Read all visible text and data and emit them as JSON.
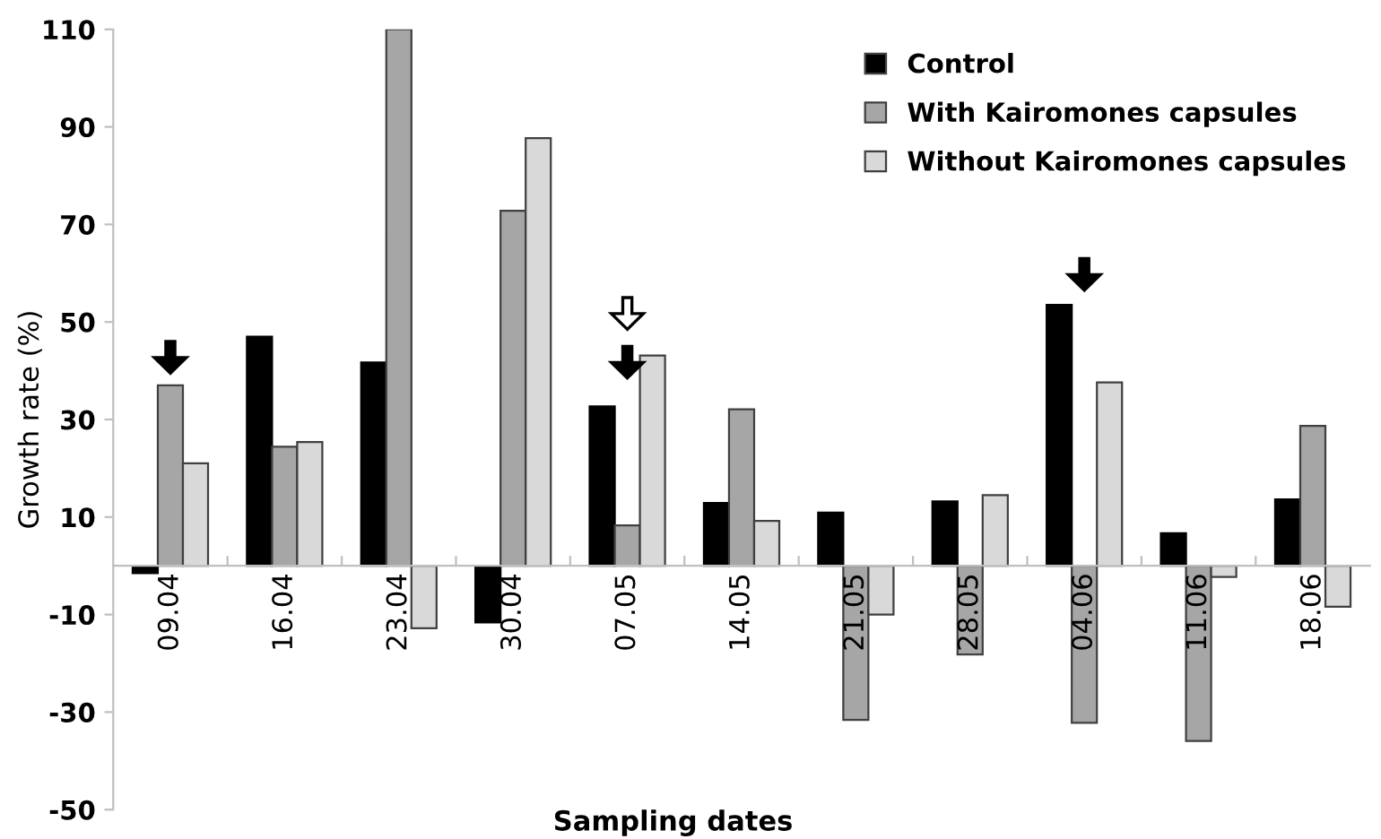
{
  "chart_data": {
    "type": "bar",
    "xlabel": "Sampling dates",
    "ylabel": "Growth rate (%)",
    "categories": [
      "09.04",
      "16.04",
      "23.04",
      "30.04",
      "07.05",
      "14.05",
      "21.05",
      "28.05",
      "04.06",
      "11.06",
      "18.06"
    ],
    "series": [
      {
        "name": "Control",
        "color": "#000000",
        "values": [
          -1.5,
          47,
          41.7,
          -11.6,
          32.7,
          12.9,
          10.9,
          13.2,
          53.5,
          6.7,
          13.6
        ]
      },
      {
        "name": "With Kairomones capsules",
        "color": "#a6a6a6",
        "values": [
          37,
          24.4,
          110,
          72.8,
          8.3,
          32.1,
          -31.6,
          -18.2,
          -32.2,
          -35.9,
          28.7
        ]
      },
      {
        "name": "Without Kairomones capsules",
        "color": "#d9d9d9",
        "values": [
          21,
          25.4,
          -12.8,
          87.7,
          43.1,
          9.2,
          -10,
          14.5,
          37.6,
          -2.3,
          -8.4
        ]
      }
    ],
    "ylim": [
      -50,
      110
    ],
    "yticks": [
      -50,
      -30,
      -10,
      10,
      30,
      50,
      70,
      90,
      110
    ],
    "grid": false,
    "legend": "top right"
  }
}
